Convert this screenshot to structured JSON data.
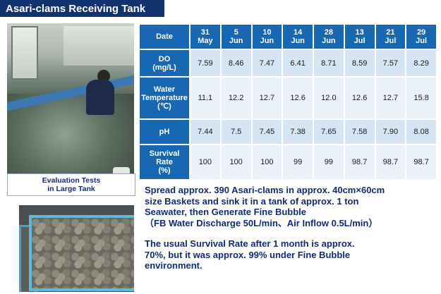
{
  "title": "Asari-clams Receiving Tank",
  "caption": {
    "line1": "Evaluation Tests",
    "line2": "in Large Tank"
  },
  "table": {
    "header_label": "Date",
    "dates": [
      {
        "l1": "31",
        "l2": "May"
      },
      {
        "l1": "5",
        "l2": "Jun"
      },
      {
        "l1": "10",
        "l2": "Jun"
      },
      {
        "l1": "14",
        "l2": "Jun"
      },
      {
        "l1": "28",
        "l2": "Jun"
      },
      {
        "l1": "13",
        "l2": "Jul"
      },
      {
        "l1": "21",
        "l2": "Jul"
      },
      {
        "l1": "29",
        "l2": "Jul"
      }
    ],
    "rows": {
      "do": {
        "label_l1": "DO",
        "label_l2": "(mg/L)",
        "values": [
          "7.59",
          "8.46",
          "7.47",
          "6.41",
          "8.71",
          "8.59",
          "7.57",
          "8.29"
        ]
      },
      "temp": {
        "label_l1": "Water",
        "label_l2": "Temperature",
        "label_l3": "(℃)",
        "values": [
          "11.1",
          "12.2",
          "12.7",
          "12.6",
          "12.0",
          "12.6",
          "12.7",
          "15.8"
        ]
      },
      "ph": {
        "label_l1": "pH",
        "values": [
          "7.44",
          "7.5",
          "7.45",
          "7.38",
          "7.65",
          "7.58",
          "7.90",
          "8.08"
        ]
      },
      "survival": {
        "label_l1": "Survival",
        "label_l2": "Rate",
        "label_l3": "(%)",
        "values": [
          "100",
          "100",
          "100",
          "99",
          "99",
          "98.7",
          "98.7",
          "98.7"
        ]
      }
    }
  },
  "description": {
    "line1": "Spread approx. 390 Asari-clams in approx. 40cm×60cm",
    "line2": "size Baskets and sink it in a tank of approx. 1 ton",
    "line3": "Seawater, then Generate Fine Bubble",
    "line4": "（FB Water Discharge 50L/min、Air Inflow 0.5L/min）",
    "line5": "The usual Survival Rate after 1 month is approx.",
    "line6": "70%, but it was approx. 99% under Fine Bubble",
    "line7": "environment."
  }
}
